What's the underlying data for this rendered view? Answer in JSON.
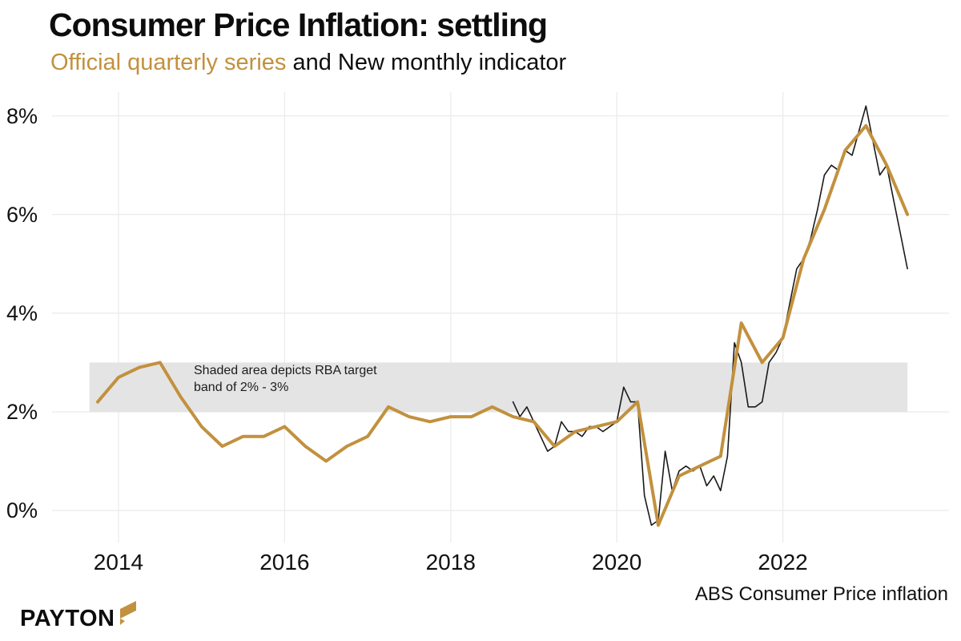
{
  "logo": {
    "text": "PAYTON"
  },
  "colors": {
    "quarterly": "#C2913E",
    "monthly": "#1a1a1a",
    "band": "#E4E4E4",
    "grid": "#EBEBEB",
    "gold": "#C2913E",
    "text": "#0e0e0e"
  },
  "chart_data": {
    "type": "line",
    "title": "Consumer Price Inflation: settling",
    "subtitle_parts": [
      {
        "text": "Official quarterly series",
        "color": "#C2913E"
      },
      {
        "text": " and New monthly indicator",
        "color": "#0e0e0e"
      }
    ],
    "source_caption": "ABS Consumer Price inflation",
    "annotation": {
      "line1": "Shaded area depicts RBA target",
      "line2": "band of 2% - 3%"
    },
    "xlabel": "",
    "ylabel": "",
    "grid": true,
    "x_ticks": [
      2014,
      2016,
      2018,
      2020,
      2022
    ],
    "x_tick_labels": [
      "2014",
      "2016",
      "2018",
      "2020",
      "2022"
    ],
    "y_ticks": [
      0,
      2,
      4,
      6,
      8
    ],
    "y_tick_labels": [
      "0%",
      "2%",
      "4%",
      "6%",
      "8%"
    ],
    "x_range": [
      2013.2,
      2024.0
    ],
    "y_range": [
      -0.6,
      8.4
    ],
    "target_band": {
      "from": 2,
      "to": 3,
      "x_start": 2013.65,
      "x_end": 2023.5
    },
    "series": [
      {
        "name": "Official quarterly series",
        "color": "#C2913E",
        "width": 4,
        "x": [
          2013.75,
          2014.0,
          2014.25,
          2014.5,
          2014.75,
          2015.0,
          2015.25,
          2015.5,
          2015.75,
          2016.0,
          2016.25,
          2016.5,
          2016.75,
          2017.0,
          2017.25,
          2017.5,
          2017.75,
          2018.0,
          2018.25,
          2018.5,
          2018.75,
          2019.0,
          2019.25,
          2019.5,
          2019.75,
          2020.0,
          2020.25,
          2020.5,
          2020.75,
          2021.0,
          2021.25,
          2021.5,
          2021.75,
          2022.0,
          2022.25,
          2022.5,
          2022.75,
          2023.0,
          2023.25,
          2023.5
        ],
        "values": [
          2.2,
          2.7,
          2.9,
          3.0,
          2.3,
          1.7,
          1.3,
          1.5,
          1.5,
          1.7,
          1.3,
          1.0,
          1.3,
          1.5,
          2.1,
          1.9,
          1.8,
          1.9,
          1.9,
          2.1,
          1.9,
          1.8,
          1.3,
          1.6,
          1.7,
          1.8,
          2.2,
          -0.3,
          0.7,
          0.9,
          1.1,
          3.8,
          3.0,
          3.5,
          5.1,
          6.1,
          7.3,
          7.8,
          7.0,
          6.0
        ]
      },
      {
        "name": "New monthly indicator",
        "color": "#1a1a1a",
        "width": 1.6,
        "x": [
          2018.75,
          2018.833,
          2018.917,
          2019.0,
          2019.083,
          2019.167,
          2019.25,
          2019.333,
          2019.417,
          2019.5,
          2019.583,
          2019.667,
          2019.75,
          2019.833,
          2019.917,
          2020.0,
          2020.083,
          2020.167,
          2020.25,
          2020.333,
          2020.417,
          2020.5,
          2020.583,
          2020.667,
          2020.75,
          2020.833,
          2020.917,
          2021.0,
          2021.083,
          2021.167,
          2021.25,
          2021.333,
          2021.417,
          2021.5,
          2021.583,
          2021.667,
          2021.75,
          2021.833,
          2021.917,
          2022.0,
          2022.083,
          2022.167,
          2022.25,
          2022.333,
          2022.417,
          2022.5,
          2022.583,
          2022.667,
          2022.75,
          2022.833,
          2022.917,
          2023.0,
          2023.083,
          2023.167,
          2023.25,
          2023.333,
          2023.417,
          2023.5
        ],
        "values": [
          2.2,
          1.9,
          2.1,
          1.8,
          1.5,
          1.2,
          1.3,
          1.8,
          1.6,
          1.6,
          1.5,
          1.7,
          1.7,
          1.6,
          1.7,
          1.8,
          2.5,
          2.2,
          2.2,
          0.3,
          -0.3,
          -0.2,
          1.2,
          0.4,
          0.8,
          0.9,
          0.8,
          0.9,
          0.5,
          0.7,
          0.4,
          1.1,
          3.4,
          3.0,
          2.1,
          2.1,
          2.2,
          3.0,
          3.2,
          3.5,
          4.2,
          4.9,
          5.1,
          5.5,
          6.1,
          6.8,
          7.0,
          6.9,
          7.3,
          7.2,
          7.7,
          8.2,
          7.5,
          6.8,
          7.0,
          6.3,
          5.6,
          4.9
        ]
      }
    ]
  }
}
